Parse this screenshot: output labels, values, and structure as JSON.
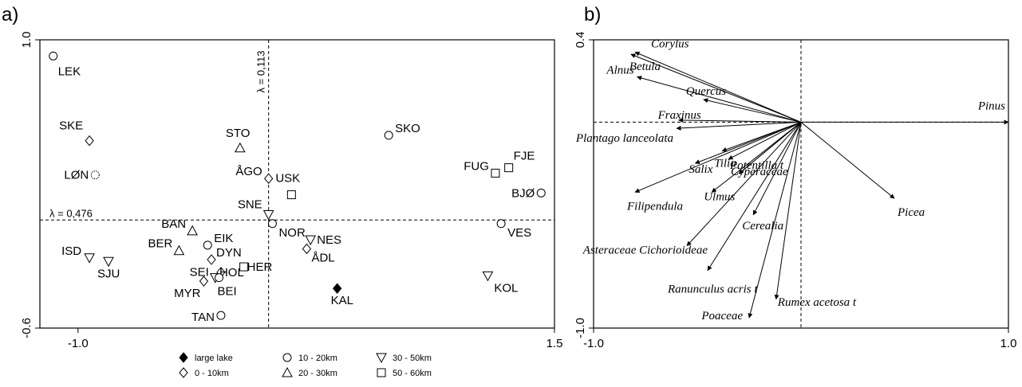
{
  "chart_data": [
    {
      "type": "scatter",
      "panel_label": "a)",
      "xlim": [
        -1.2,
        1.5
      ],
      "ylim": [
        -0.6,
        1.0
      ],
      "x_ticks": [
        "-1.0",
        "1.5"
      ],
      "y_ticks": [
        "1.0",
        "-0.6"
      ],
      "x_tick_values": [
        -1.0,
        1.5
      ],
      "y_tick_values": [
        1.0,
        -0.6
      ],
      "ref_x": 0.0,
      "ref_y": 0.0,
      "lambda_vertical": "λ = 0,113",
      "lambda_horizontal": "λ = 0,476",
      "legend_placement": "bottom",
      "legend": [
        {
          "symbol": "diamond-filled",
          "label": "large lake"
        },
        {
          "symbol": "diamond",
          "label": "0 - 10km"
        },
        {
          "symbol": "circle",
          "label": "10 - 20km"
        },
        {
          "symbol": "triangle",
          "label": "20 - 30km"
        },
        {
          "symbol": "triangle-down",
          "label": "30 - 50km"
        },
        {
          "symbol": "square",
          "label": "50 - 60km"
        }
      ],
      "points": [
        {
          "name": "LEK",
          "x": -1.13,
          "y": 0.91,
          "symbol": "circle"
        },
        {
          "name": "SKE",
          "x": -0.94,
          "y": 0.44,
          "symbol": "diamond"
        },
        {
          "name": "LØN",
          "x": -0.91,
          "y": 0.25,
          "symbol": "circle-dotted"
        },
        {
          "name": "STO",
          "x": -0.15,
          "y": 0.4,
          "symbol": "triangle"
        },
        {
          "name": "ÅGO",
          "x": 0.0,
          "y": 0.23,
          "symbol": "diamond"
        },
        {
          "name": "USK",
          "x": 0.12,
          "y": 0.14,
          "symbol": "square"
        },
        {
          "name": "SKO",
          "x": 0.63,
          "y": 0.47,
          "symbol": "circle"
        },
        {
          "name": "FJE",
          "x": 1.26,
          "y": 0.29,
          "symbol": "square"
        },
        {
          "name": "FUG",
          "x": 1.19,
          "y": 0.26,
          "symbol": "square"
        },
        {
          "name": "BJØ",
          "x": 1.43,
          "y": 0.15,
          "symbol": "circle"
        },
        {
          "name": "SNE",
          "x": 0.0,
          "y": 0.03,
          "symbol": "triangle-down"
        },
        {
          "name": "NOR",
          "x": 0.02,
          "y": -0.02,
          "symbol": "circle"
        },
        {
          "name": "VES",
          "x": 1.22,
          "y": -0.02,
          "symbol": "circle"
        },
        {
          "name": "BAN",
          "x": -0.4,
          "y": -0.06,
          "symbol": "triangle"
        },
        {
          "name": "EIK",
          "x": -0.32,
          "y": -0.14,
          "symbol": "circle"
        },
        {
          "name": "NES",
          "x": 0.22,
          "y": -0.11,
          "symbol": "triangle-down"
        },
        {
          "name": "ÅDL",
          "x": 0.2,
          "y": -0.16,
          "symbol": "diamond"
        },
        {
          "name": "ISD",
          "x": -0.94,
          "y": -0.21,
          "symbol": "triangle-down"
        },
        {
          "name": "SJU",
          "x": -0.84,
          "y": -0.23,
          "symbol": "triangle-down"
        },
        {
          "name": "BER",
          "x": -0.47,
          "y": -0.17,
          "symbol": "triangle"
        },
        {
          "name": "DYN",
          "x": -0.3,
          "y": -0.22,
          "symbol": "diamond"
        },
        {
          "name": "HER",
          "x": -0.13,
          "y": -0.26,
          "symbol": "square"
        },
        {
          "name": "SEI",
          "x": -0.28,
          "y": -0.32,
          "symbol": "triangle-down"
        },
        {
          "name": "HOL",
          "x": -0.25,
          "y": -0.29,
          "symbol": "diamond"
        },
        {
          "name": "MYR",
          "x": -0.34,
          "y": -0.34,
          "symbol": "diamond"
        },
        {
          "name": "BEI",
          "x": -0.26,
          "y": -0.32,
          "symbol": "circle"
        },
        {
          "name": "KAL",
          "x": 0.36,
          "y": -0.38,
          "symbol": "diamond-filled"
        },
        {
          "name": "KOL",
          "x": 1.15,
          "y": -0.31,
          "symbol": "triangle-down"
        },
        {
          "name": "TAN",
          "x": -0.25,
          "y": -0.53,
          "symbol": "circle"
        }
      ]
    },
    {
      "type": "biplot",
      "panel_label": "b)",
      "xlim": [
        -1.0,
        1.0
      ],
      "ylim": [
        -1.0,
        0.4
      ],
      "x_ticks": [
        "-1.0",
        "1.0"
      ],
      "y_ticks": [
        "0.4",
        "-1.0"
      ],
      "x_tick_values": [
        -1.0,
        1.0
      ],
      "y_tick_values": [
        0.4,
        -1.0
      ],
      "ref_x": 0.0,
      "ref_y": 0.0,
      "arrows": [
        {
          "name": "Corylus",
          "x": -0.8,
          "y": 0.34
        },
        {
          "name": "Betula",
          "x": -0.82,
          "y": 0.33
        },
        {
          "name": "Alnus",
          "x": -0.79,
          "y": 0.22
        },
        {
          "name": "Quercus",
          "x": -0.47,
          "y": 0.11
        },
        {
          "name": "Pinus",
          "x": 1.0,
          "y": 0.0
        },
        {
          "name": "Fraxinus",
          "x": -0.59,
          "y": 0.01
        },
        {
          "name": "Plantago lanceolata",
          "x": -0.6,
          "y": -0.03
        },
        {
          "name": "Tilia",
          "x": -0.38,
          "y": -0.14
        },
        {
          "name": "Potentilla t",
          "x": -0.35,
          "y": -0.18
        },
        {
          "name": "Salix",
          "x": -0.51,
          "y": -0.2
        },
        {
          "name": "Cyperaceae",
          "x": -0.3,
          "y": -0.25
        },
        {
          "name": "Filipendula",
          "x": -0.8,
          "y": -0.34
        },
        {
          "name": "Ulmus",
          "x": -0.43,
          "y": -0.34
        },
        {
          "name": "Picea",
          "x": 0.45,
          "y": -0.37
        },
        {
          "name": "Cerealia",
          "x": -0.23,
          "y": -0.45
        },
        {
          "name": "Asteraceae Cichorioideae",
          "x": -0.55,
          "y": -0.6
        },
        {
          "name": "Ranunculus acris t",
          "x": -0.45,
          "y": -0.72
        },
        {
          "name": "Rumex acetosa t",
          "x": -0.12,
          "y": -0.86
        },
        {
          "name": "Poaceae",
          "x": -0.25,
          "y": -0.95
        }
      ]
    }
  ]
}
